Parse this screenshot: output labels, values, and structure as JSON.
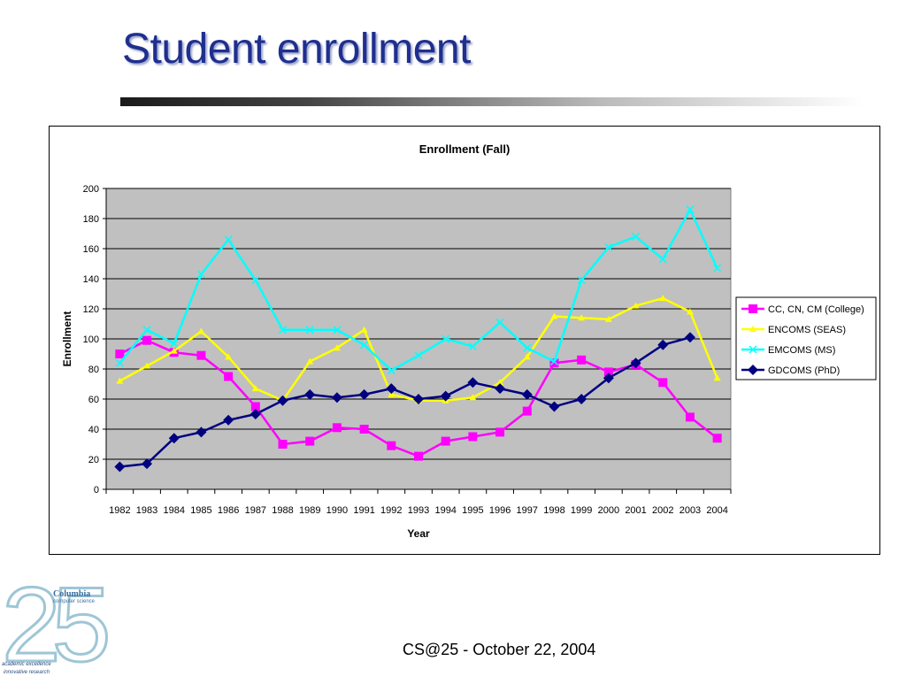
{
  "slide": {
    "title": "Student enrollment",
    "footer": "CS@25 - October 22, 2004"
  },
  "logo": {
    "digits": "25",
    "brand": "Columbia",
    "subtitle": "computer science",
    "tagline_1": "academic excellence",
    "tagline_2": "innovative research"
  },
  "chart_data": {
    "type": "line",
    "title": "Enrollment (Fall)",
    "xlabel": "Year",
    "ylabel": "Enrollment",
    "ylim": [
      0,
      200
    ],
    "yticks": [
      0,
      20,
      40,
      60,
      80,
      100,
      120,
      140,
      160,
      180,
      200
    ],
    "grid": true,
    "plot_background": "#c0c0c0",
    "legend_position": "right",
    "categories": [
      "1982",
      "1983",
      "1984",
      "1985",
      "1986",
      "1987",
      "1988",
      "1989",
      "1990",
      "1991",
      "1992",
      "1993",
      "1994",
      "1995",
      "1996",
      "1997",
      "1998",
      "1999",
      "2000",
      "2001",
      "2002",
      "2003",
      "2004"
    ],
    "series": [
      {
        "name": "CC, CN, CM (College)",
        "color": "#ff00ff",
        "marker": "square",
        "values": [
          90,
          99,
          91,
          89,
          75,
          55,
          30,
          32,
          41,
          40,
          29,
          22,
          32,
          35,
          38,
          52,
          84,
          86,
          78,
          83,
          71,
          48,
          34
        ]
      },
      {
        "name": "ENCOMS (SEAS)",
        "color": "#ffff00",
        "marker": "triangle",
        "values": [
          72,
          82,
          92,
          105,
          88,
          67,
          59,
          85,
          94,
          106,
          63,
          59,
          59,
          61,
          71,
          88,
          115,
          114,
          113,
          122,
          127,
          118,
          74
        ]
      },
      {
        "name": "EMCOMS (MS)",
        "color": "#00ffff",
        "marker": "x",
        "values": [
          84,
          106,
          97,
          143,
          166,
          139,
          106,
          106,
          106,
          96,
          79,
          89,
          100,
          95,
          111,
          94,
          85,
          139,
          161,
          168,
          153,
          186,
          147
        ]
      },
      {
        "name": "GDCOMS (PhD)",
        "color": "#000080",
        "marker": "diamond",
        "values": [
          15,
          17,
          34,
          38,
          46,
          50,
          59,
          63,
          61,
          63,
          67,
          60,
          62,
          71,
          67,
          63,
          55,
          60,
          74,
          84,
          96,
          101,
          null
        ]
      }
    ]
  }
}
